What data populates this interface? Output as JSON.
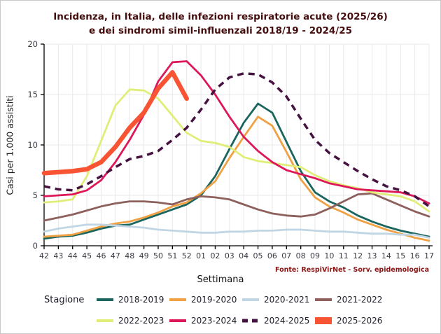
{
  "window": {
    "background": "#ffffff",
    "border_color": "#c9c9c9"
  },
  "title": {
    "line1": "Incidenza, in Italia, delle infezioni respiratorie acute (2025/26)",
    "line2": "e dei sindromi simil-influenzali 2018/19 - 2024/25",
    "color": "#450d0d"
  },
  "source_note": {
    "text": "Fonte: RespiVirNet - Sorv. epidemologica",
    "color": "#8b1515"
  },
  "chart_data": {
    "type": "line",
    "title": "Incidenza, in Italia, delle infezioni respiratorie acute (2025/26) e dei sindromi simil-influenzali 2018/19 - 2024/25",
    "xlabel": "Settimana",
    "ylabel": "Casi per 1.000 assistiti",
    "ylim": [
      0,
      20
    ],
    "yticks": [
      0,
      5,
      10,
      15,
      20
    ],
    "grid": true,
    "gridline_color": "#e8e8e8",
    "axis_color": "#000000",
    "tick_label_color": "#3a3a42",
    "legend_title": "Stagione",
    "legend_position": "bottom",
    "categories": [
      "42",
      "43",
      "44",
      "45",
      "46",
      "47",
      "48",
      "49",
      "50",
      "51",
      "52",
      "01",
      "02",
      "03",
      "04",
      "05",
      "06",
      "07",
      "08",
      "09",
      "10",
      "11",
      "12",
      "13",
      "14",
      "15",
      "16",
      "17"
    ],
    "series": [
      {
        "name": "2018-2019",
        "color": "#1a655e",
        "style": "solid",
        "width": 2.8,
        "values": [
          0.7,
          0.9,
          1.0,
          1.3,
          1.7,
          2.0,
          2.1,
          2.6,
          3.1,
          3.6,
          4.1,
          5.0,
          6.9,
          9.6,
          12.2,
          14.1,
          13.2,
          10.3,
          7.4,
          5.3,
          4.4,
          3.8,
          3.0,
          2.4,
          1.9,
          1.5,
          1.2,
          0.9
        ]
      },
      {
        "name": "2019-2020",
        "color": "#efa143",
        "style": "solid",
        "width": 2.8,
        "values": [
          0.9,
          1.0,
          1.1,
          1.5,
          1.9,
          2.2,
          2.4,
          2.8,
          3.3,
          3.9,
          4.3,
          5.2,
          6.4,
          8.7,
          10.8,
          12.8,
          11.9,
          9.3,
          6.6,
          4.8,
          3.9,
          3.3,
          2.6,
          2.1,
          1.6,
          1.2,
          0.8,
          0.5
        ]
      },
      {
        "name": "2020-2021",
        "color": "#c0d6e4",
        "style": "solid",
        "width": 2.8,
        "values": [
          1.4,
          1.7,
          1.9,
          2.1,
          2.1,
          2.0,
          1.9,
          1.8,
          1.6,
          1.5,
          1.4,
          1.3,
          1.3,
          1.4,
          1.4,
          1.5,
          1.5,
          1.6,
          1.6,
          1.5,
          1.4,
          1.4,
          1.3,
          1.2,
          1.2,
          1.1,
          1.1,
          0.8
        ]
      },
      {
        "name": "2021-2022",
        "color": "#8d605c",
        "style": "solid",
        "width": 2.8,
        "values": [
          2.5,
          2.8,
          3.1,
          3.5,
          3.9,
          4.2,
          4.4,
          4.4,
          4.3,
          4.1,
          4.6,
          4.9,
          4.8,
          4.6,
          4.1,
          3.6,
          3.2,
          3.0,
          2.9,
          3.1,
          3.7,
          4.4,
          5.1,
          5.2,
          4.6,
          4.0,
          3.4,
          2.9
        ]
      },
      {
        "name": "2022-2023",
        "color": "#e0ee78",
        "style": "solid",
        "width": 2.8,
        "values": [
          4.3,
          4.4,
          4.6,
          6.9,
          10.4,
          13.9,
          15.5,
          15.4,
          14.6,
          12.9,
          11.2,
          10.4,
          10.2,
          9.8,
          8.8,
          8.4,
          8.2,
          8.0,
          7.8,
          7.0,
          6.4,
          6.0,
          5.7,
          5.3,
          5.1,
          4.9,
          4.4,
          3.4
        ]
      },
      {
        "name": "2023-2024",
        "color": "#dd1859",
        "style": "solid",
        "width": 2.8,
        "values": [
          4.9,
          5.0,
          5.1,
          5.5,
          6.5,
          8.3,
          10.5,
          13.0,
          16.3,
          18.2,
          18.3,
          16.9,
          15.0,
          12.8,
          10.8,
          9.4,
          8.3,
          7.5,
          7.1,
          6.7,
          6.2,
          5.9,
          5.6,
          5.5,
          5.4,
          5.3,
          4.9,
          4.2
        ]
      },
      {
        "name": "2024-2025",
        "color": "#451240",
        "style": "dashed",
        "width": 3.5,
        "values": [
          5.9,
          5.6,
          5.5,
          6.1,
          6.9,
          7.8,
          8.6,
          8.9,
          9.4,
          10.5,
          11.7,
          13.5,
          15.5,
          16.7,
          17.1,
          17.0,
          16.2,
          14.8,
          12.6,
          10.5,
          9.2,
          8.3,
          7.4,
          6.6,
          5.9,
          5.5,
          4.9,
          3.9
        ]
      },
      {
        "name": "2025-2026",
        "color": "#f85433",
        "style": "solid",
        "width": 6.5,
        "values": [
          7.2,
          7.3,
          7.4,
          7.6,
          8.3,
          9.8,
          11.7,
          13.2,
          15.6,
          17.2,
          14.6,
          null,
          null,
          null,
          null,
          null,
          null,
          null,
          null,
          null,
          null,
          null,
          null,
          null,
          null,
          null,
          null,
          null
        ]
      }
    ]
  }
}
